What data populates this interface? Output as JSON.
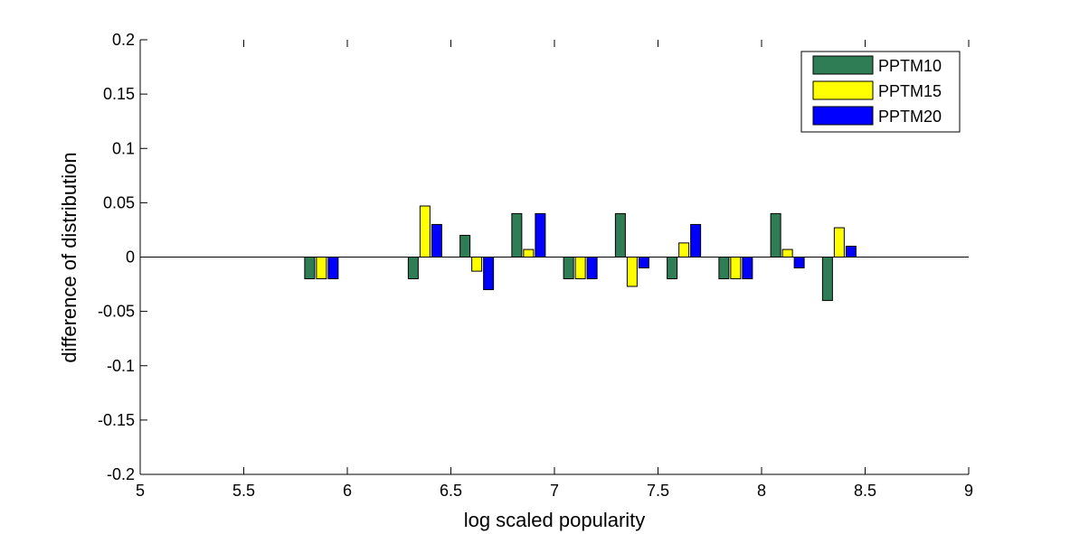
{
  "chart_data": {
    "type": "bar",
    "xlabel": "log scaled popularity",
    "ylabel": "difference of distribution",
    "xlim": [
      5,
      9
    ],
    "ylim": [
      -0.2,
      0.2
    ],
    "xticks": [
      "5",
      "5.5",
      "6",
      "6.5",
      "7",
      "7.5",
      "8",
      "8.5",
      "9"
    ],
    "yticks": [
      "-0.2",
      "-0.15",
      "-0.1",
      "-0.05",
      "0",
      "0.05",
      "0.1",
      "0.15",
      "0.2"
    ],
    "grid": false,
    "legend_position": "top-right",
    "x": [
      5.875,
      6.375,
      6.625,
      6.875,
      7.125,
      7.375,
      7.625,
      7.875,
      8.125,
      8.375
    ],
    "series": [
      {
        "name": "PPTM10",
        "color": "#2e7d55",
        "values": [
          -0.02,
          -0.02,
          0.02,
          0.04,
          -0.02,
          0.04,
          -0.02,
          -0.02,
          0.04,
          -0.04
        ]
      },
      {
        "name": "PPTM15",
        "color": "#ffff00",
        "values": [
          -0.02,
          0.047,
          -0.013,
          0.007,
          -0.02,
          -0.027,
          0.013,
          -0.02,
          0.007,
          0.027
        ]
      },
      {
        "name": "PPTM20",
        "color": "#0000ff",
        "values": [
          -0.02,
          0.03,
          -0.03,
          0.04,
          -0.02,
          -0.01,
          0.03,
          -0.02,
          -0.01,
          0.01
        ]
      }
    ]
  }
}
